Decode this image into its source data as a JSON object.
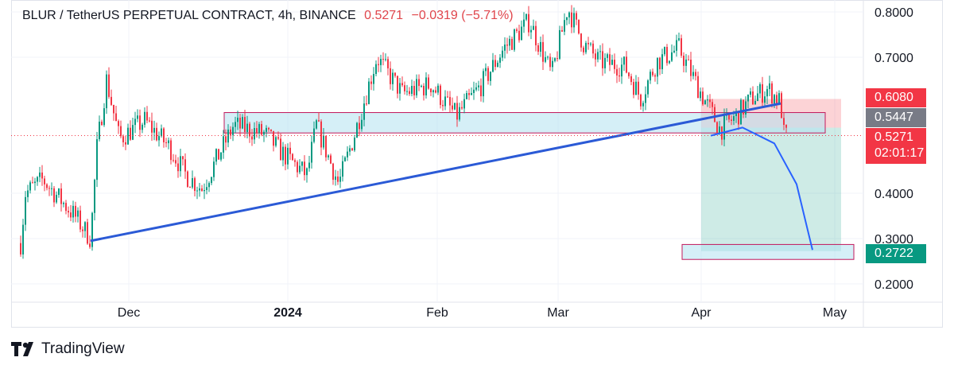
{
  "header": {
    "symbol": "BLUR / TetherUS PERPETUAL CONTRACT, 4h, BINANCE",
    "last_price": "0.5271",
    "change": "−0.0319 (−5.71%)"
  },
  "price_tags": {
    "stop": {
      "value": "0.6080",
      "color": "#f23645"
    },
    "entry": {
      "value": "0.5447",
      "color": "#787b86"
    },
    "last": {
      "value": "0.5271",
      "countdown": "02:01:17",
      "color": "#f23645"
    },
    "target": {
      "value": "0.2722",
      "color": "#089981"
    }
  },
  "brand": {
    "name": "TradingView",
    "icon": "tradingview-logo-icon"
  },
  "chart_data": {
    "type": "candlestick",
    "title": "BLUR / TetherUS PERPETUAL CONTRACT, 4h, BINANCE",
    "y_ticks": [
      "0.8000",
      "0.7000",
      "0.4000",
      "0.3000",
      "0.2000"
    ],
    "x_ticks": [
      {
        "label": "Dec",
        "bold": false
      },
      {
        "label": "2024",
        "bold": true
      },
      {
        "label": "Feb",
        "bold": false
      },
      {
        "label": "Mar",
        "bold": false
      },
      {
        "label": "Apr",
        "bold": false
      },
      {
        "label": "May",
        "bold": false
      }
    ],
    "grid": true,
    "colors": {
      "up": "#089981",
      "down": "#f23645",
      "trendline": "#2b5ad6",
      "zone_fill": "#d4f0f7",
      "zone_border": "#c2185b"
    },
    "price_path": [
      [
        0.3,
        0.29
      ],
      [
        0.45,
        0.4
      ],
      [
        1.0,
        0.43
      ],
      [
        2.0,
        0.35
      ],
      [
        2.5,
        0.3
      ],
      [
        2.7,
        0.5
      ],
      [
        3.0,
        0.65
      ],
      [
        3.4,
        0.52
      ],
      [
        4.2,
        0.56
      ],
      [
        5.0,
        0.5
      ],
      [
        5.5,
        0.44
      ],
      [
        6.0,
        0.41
      ],
      [
        7.0,
        0.55
      ],
      [
        8.0,
        0.53
      ],
      [
        8.5,
        0.49
      ],
      [
        9.3,
        0.44
      ],
      [
        9.6,
        0.55
      ],
      [
        10.3,
        0.42
      ],
      [
        10.8,
        0.53
      ],
      [
        11.5,
        0.7
      ],
      [
        12.3,
        0.62
      ],
      [
        13.2,
        0.64
      ],
      [
        14.0,
        0.57
      ],
      [
        14.8,
        0.64
      ],
      [
        15.5,
        0.72
      ],
      [
        16.3,
        0.78
      ],
      [
        17.0,
        0.66
      ],
      [
        17.5,
        0.81
      ],
      [
        18.0,
        0.73
      ],
      [
        18.5,
        0.69
      ],
      [
        19.3,
        0.68
      ],
      [
        19.8,
        0.61
      ],
      [
        20.3,
        0.69
      ],
      [
        21.0,
        0.72
      ],
      [
        21.7,
        0.62
      ],
      [
        22.3,
        0.54
      ],
      [
        22.8,
        0.57
      ],
      [
        23.3,
        0.61
      ],
      [
        23.8,
        0.63
      ],
      [
        24.2,
        0.6
      ],
      [
        24.3,
        0.53
      ],
      [
        24.4,
        0.5271
      ]
    ],
    "x_tick_positions": [
      3.7,
      8.7,
      13.4,
      17.2,
      21.7,
      25.9
    ],
    "zones": [
      {
        "name": "resistance-zone",
        "x0": 6.7,
        "x1": 25.6,
        "y0": 0.533,
        "y1": 0.578
      },
      {
        "name": "target-zone",
        "x0": 21.1,
        "x1": 26.5,
        "y0": 0.254,
        "y1": 0.287
      }
    ],
    "trendline": {
      "x0": 2.5,
      "y0": 0.295,
      "x1": 24.2,
      "y1": 0.598
    },
    "short_position": {
      "x0": 21.7,
      "x1": 26.1,
      "stop": 0.608,
      "entry": 0.5447,
      "target": 0.2722
    },
    "projection": [
      [
        22.0,
        0.527
      ],
      [
        23.0,
        0.545
      ],
      [
        24.0,
        0.51
      ],
      [
        24.7,
        0.42
      ],
      [
        25.2,
        0.275
      ]
    ],
    "last_price": 0.5271
  }
}
